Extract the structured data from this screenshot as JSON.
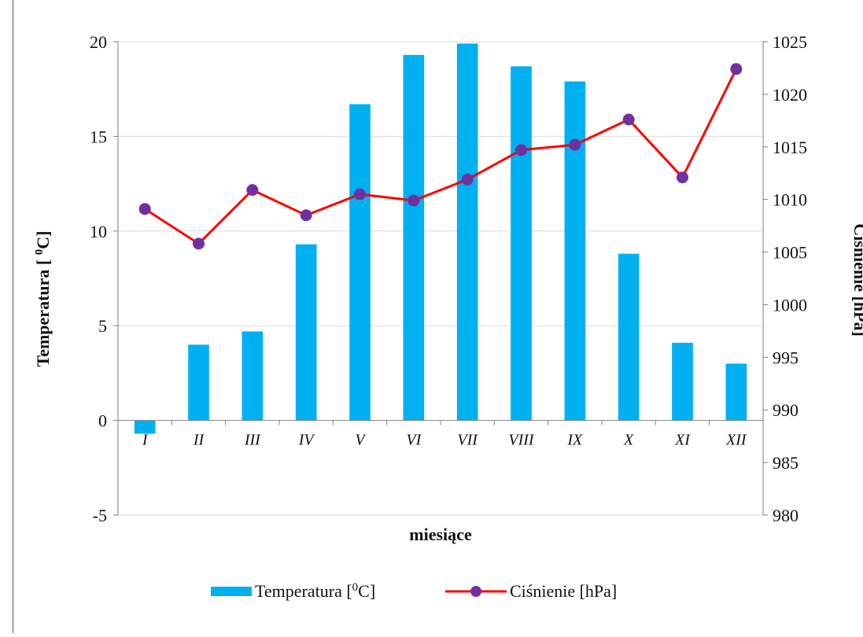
{
  "chart_data": {
    "type": "bar+line",
    "categories": [
      "I",
      "II",
      "III",
      "IV",
      "V",
      "VI",
      "VII",
      "VIII",
      "IX",
      "X",
      "XI",
      "XII"
    ],
    "series": [
      {
        "name": "Temperatura [0C]",
        "type": "bar",
        "axis": "left",
        "color": "#00B0F0",
        "values": [
          -0.7,
          4.0,
          4.7,
          9.3,
          16.7,
          19.3,
          19.9,
          18.7,
          17.9,
          8.8,
          4.1,
          3.0
        ]
      },
      {
        "name": "Ciśnienie [hPa]",
        "type": "line",
        "axis": "right",
        "color": "#FF0000",
        "marker_color": "#7030A0",
        "values": [
          1009.1,
          1005.8,
          1010.9,
          1008.5,
          1010.5,
          1009.9,
          1011.9,
          1014.7,
          1015.2,
          1017.6,
          1012.1,
          1022.4
        ]
      }
    ],
    "xlabel": "miesiące",
    "ylabel_left": {
      "main": "Temperatura  [ ",
      "sup": "0",
      "tail": "C]"
    },
    "ylabel_right": "Ciśnienie  [hPa]",
    "ylim_left": [
      -5,
      20
    ],
    "ylim_right": [
      980,
      1025
    ],
    "yticks_left": [
      "20",
      "15",
      "10",
      "5",
      "0",
      "-5"
    ],
    "yticks_right": [
      "1025",
      "1020",
      "1015",
      "1010",
      "1005",
      "1000",
      "995",
      "990",
      "985",
      "980"
    ],
    "legend": {
      "placement": "bottom",
      "items": [
        {
          "text": "Temperatura [",
          "sup": "0",
          "tail": "C]"
        },
        {
          "text": "Ciśnienie [hPa]"
        }
      ]
    },
    "grid": "horizontal"
  }
}
